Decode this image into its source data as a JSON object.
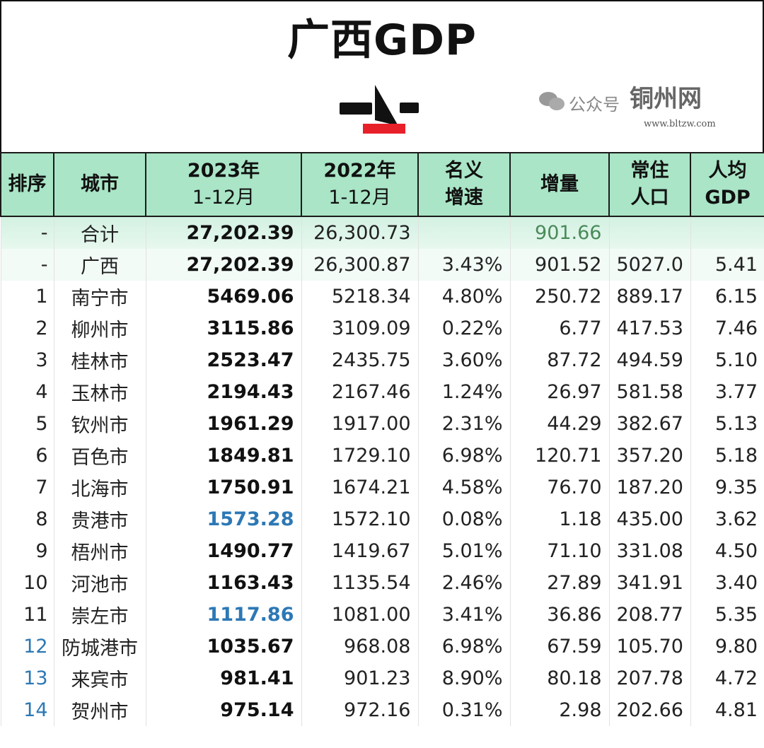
{
  "title": "广西GDP",
  "headers": [
    {
      "line1": "排序",
      "line2": ""
    },
    {
      "line1": "城市",
      "line2": ""
    },
    {
      "line1": "2023年",
      "line2": "1-12月"
    },
    {
      "line1": "2022年",
      "line2": "1-12月"
    },
    {
      "line1": "名义",
      "line2": "增速"
    },
    {
      "line1": "增量",
      "line2": ""
    },
    {
      "line1": "常住",
      "line2": "人口"
    },
    {
      "line1": "人均",
      "line2": "GDP"
    }
  ],
  "rows": [
    {
      "rank": "-",
      "city": "合计",
      "gdp2023": "27,202.39",
      "gdp2022": "26,300.73",
      "growth": "",
      "increase": "901.66",
      "population": "",
      "per_capita": ""
    },
    {
      "rank": "-",
      "city": "广西",
      "gdp2023": "27,202.39",
      "gdp2022": "26,300.87",
      "growth": "3.43%",
      "increase": "901.52",
      "population": "5027.0",
      "per_capita": "5.41"
    },
    {
      "rank": "1",
      "city": "南宁市",
      "gdp2023": "5469.06",
      "gdp2022": "5218.34",
      "growth": "4.80%",
      "increase": "250.72",
      "population": "889.17",
      "per_capita": "6.15"
    },
    {
      "rank": "2",
      "city": "柳州市",
      "gdp2023": "3115.86",
      "gdp2022": "3109.09",
      "growth": "0.22%",
      "increase": "6.77",
      "population": "417.53",
      "per_capita": "7.46"
    },
    {
      "rank": "3",
      "city": "桂林市",
      "gdp2023": "2523.47",
      "gdp2022": "2435.75",
      "growth": "3.60%",
      "increase": "87.72",
      "population": "494.59",
      "per_capita": "5.10"
    },
    {
      "rank": "4",
      "city": "玉林市",
      "gdp2023": "2194.43",
      "gdp2022": "2167.46",
      "growth": "1.24%",
      "increase": "26.97",
      "population": "581.58",
      "per_capita": "3.77"
    },
    {
      "rank": "5",
      "city": "钦州市",
      "gdp2023": "1961.29",
      "gdp2022": "1917.00",
      "growth": "2.31%",
      "increase": "44.29",
      "population": "382.67",
      "per_capita": "5.13"
    },
    {
      "rank": "6",
      "city": "百色市",
      "gdp2023": "1849.81",
      "gdp2022": "1729.10",
      "growth": "6.98%",
      "increase": "120.71",
      "population": "357.20",
      "per_capita": "5.18"
    },
    {
      "rank": "7",
      "city": "北海市",
      "gdp2023": "1750.91",
      "gdp2022": "1674.21",
      "growth": "4.58%",
      "increase": "76.70",
      "population": "187.20",
      "per_capita": "9.35"
    },
    {
      "rank": "8",
      "city": "贵港市",
      "gdp2023": "1573.28",
      "gdp2022": "1572.10",
      "growth": "0.08%",
      "increase": "1.18",
      "population": "435.00",
      "per_capita": "3.62"
    },
    {
      "rank": "9",
      "city": "梧州市",
      "gdp2023": "1490.77",
      "gdp2022": "1419.67",
      "growth": "5.01%",
      "increase": "71.10",
      "population": "331.08",
      "per_capita": "4.50"
    },
    {
      "rank": "10",
      "city": "河池市",
      "gdp2023": "1163.43",
      "gdp2022": "1135.54",
      "growth": "2.46%",
      "increase": "27.89",
      "population": "341.91",
      "per_capita": "3.40"
    },
    {
      "rank": "11",
      "city": "崇左市",
      "gdp2023": "1117.86",
      "gdp2022": "1081.00",
      "growth": "3.41%",
      "increase": "36.86",
      "population": "208.77",
      "per_capita": "5.35"
    },
    {
      "rank": "12",
      "city": "防城港市",
      "gdp2023": "1035.67",
      "gdp2022": "968.08",
      "growth": "6.98%",
      "increase": "67.59",
      "population": "105.70",
      "per_capita": "9.80"
    },
    {
      "rank": "13",
      "city": "来宾市",
      "gdp2023": "981.41",
      "gdp2022": "901.23",
      "growth": "8.90%",
      "increase": "80.18",
      "population": "207.78",
      "per_capita": "4.72"
    },
    {
      "rank": "14",
      "city": "贺州市",
      "gdp2023": "975.14",
      "gdp2022": "972.16",
      "growth": "0.31%",
      "increase": "2.98",
      "population": "202.66",
      "per_capita": "4.81"
    }
  ],
  "highlight_gdp2023_rows": [
    9,
    12
  ],
  "highlight_rank_rows": [
    13,
    14,
    15
  ],
  "colors": {
    "header_bg": "#a9e5c6",
    "highlight_blue": "#2c78b5",
    "logo_red": "#e8202a",
    "sum_increase": "#4a8a5a"
  },
  "watermark": {
    "label": "公众号",
    "site": "铜州网",
    "url": "www.bltzw.com"
  }
}
